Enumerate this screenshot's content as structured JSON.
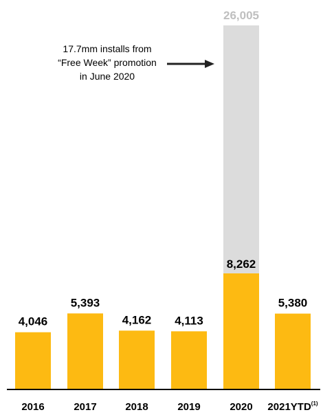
{
  "chart_data": {
    "type": "bar",
    "stacked": true,
    "categories": [
      "2016",
      "2017",
      "2018",
      "2019",
      "2020",
      "2021YTD"
    ],
    "category_footnotes": [
      "",
      "",
      "",
      "",
      "",
      "(1)"
    ],
    "series": [
      {
        "values": [
          4046,
          5393,
          4162,
          4113,
          8262,
          5380
        ],
        "color": "#FDBA12"
      },
      {
        "values": [
          0,
          0,
          0,
          0,
          17743,
          0
        ],
        "color": "#DCDCDC"
      }
    ],
    "value_labels": [
      "4,046",
      "5,393",
      "4,162",
      "4,113",
      "8,262",
      "5,380"
    ],
    "total_labels": [
      "",
      "",
      "",
      "",
      "26,005",
      ""
    ],
    "annotation": {
      "lines": [
        "17.7mm installs from",
        "“Free Week” promotion",
        "in June 2020"
      ],
      "target_category": "2020"
    },
    "ylim": [
      0,
      26005
    ],
    "grid": false,
    "title": "",
    "xlabel": "",
    "ylabel": "",
    "colors": {
      "bar": "#FDBA12",
      "promo": "#DCDCDC",
      "promo_label": "#BFBFBF",
      "axis": "#000000"
    }
  }
}
